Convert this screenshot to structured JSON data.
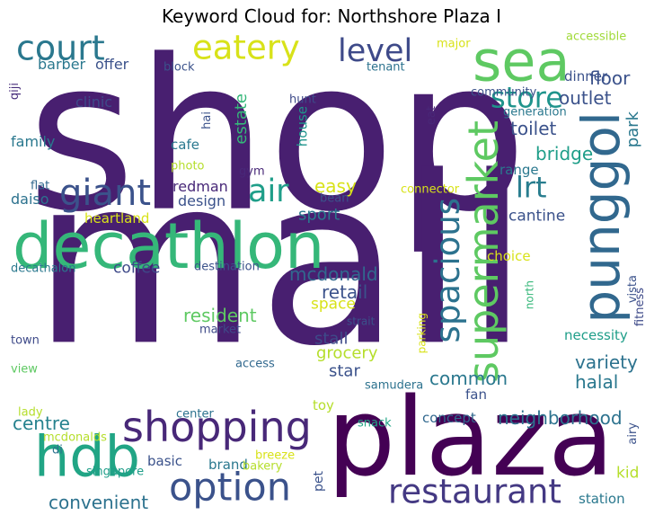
{
  "chart_data": {
    "type": "word_cloud",
    "title": "Keyword Cloud for: Northshore Plaza I",
    "colormap": "viridis",
    "background": "#ffffff",
    "words": [
      {
        "text": "shop",
        "weight": 1.0,
        "color": "#481f70",
        "vertical": false
      },
      {
        "text": "mall",
        "weight": 1.0,
        "color": "#481f70",
        "vertical": false
      },
      {
        "text": "plaza",
        "weight": 0.62,
        "color": "#440154",
        "vertical": false
      },
      {
        "text": "decathlon",
        "weight": 0.48,
        "color": "#35b779",
        "vertical": false
      },
      {
        "text": "sea",
        "weight": 0.42,
        "color": "#5ec962",
        "vertical": false
      },
      {
        "text": "punggol",
        "weight": 0.4,
        "color": "#31688e",
        "vertical": true
      },
      {
        "text": "hdb",
        "weight": 0.4,
        "color": "#21a585",
        "vertical": false
      },
      {
        "text": "shopping",
        "weight": 0.31,
        "color": "#482878",
        "vertical": false
      },
      {
        "text": "supermarket",
        "weight": 0.3,
        "color": "#5ec962",
        "vertical": true
      },
      {
        "text": "option",
        "weight": 0.28,
        "color": "#3b528b",
        "vertical": false
      },
      {
        "text": "restaurant",
        "weight": 0.24,
        "color": "#443983",
        "vertical": false
      },
      {
        "text": "spacious",
        "weight": 0.24,
        "color": "#2c728e",
        "vertical": true
      },
      {
        "text": "giant",
        "weight": 0.22,
        "color": "#3b528b",
        "vertical": false
      },
      {
        "text": "court",
        "weight": 0.21,
        "color": "#2a788e",
        "vertical": false
      },
      {
        "text": "eatery",
        "weight": 0.21,
        "color": "#d8e219",
        "vertical": false
      },
      {
        "text": "air",
        "weight": 0.2,
        "color": "#1f9e89",
        "vertical": false
      },
      {
        "text": "level",
        "weight": 0.19,
        "color": "#3e4a89",
        "vertical": false
      },
      {
        "text": "store",
        "weight": 0.18,
        "color": "#1f948c",
        "vertical": false
      },
      {
        "text": "lrt",
        "weight": 0.18,
        "color": "#287d8e",
        "vertical": false
      },
      {
        "text": "neighborhood",
        "weight": 0.13,
        "color": "#2c728e",
        "vertical": false
      },
      {
        "text": "convenient",
        "weight": 0.13,
        "color": "#2c728e",
        "vertical": false
      },
      {
        "text": "centre",
        "weight": 0.12,
        "color": "#26828e",
        "vertical": false
      },
      {
        "text": "common",
        "weight": 0.12,
        "color": "#2a788e",
        "vertical": false
      },
      {
        "text": "retail",
        "weight": 0.12,
        "color": "#3b528b",
        "vertical": false
      },
      {
        "text": "mcdonald",
        "weight": 0.12,
        "color": "#31688e",
        "vertical": false
      },
      {
        "text": "resident",
        "weight": 0.12,
        "color": "#5ec962",
        "vertical": false
      },
      {
        "text": "variety",
        "weight": 0.12,
        "color": "#2c728e",
        "vertical": false
      },
      {
        "text": "halal",
        "weight": 0.12,
        "color": "#2a788e",
        "vertical": false
      },
      {
        "text": "toilet",
        "weight": 0.11,
        "color": "#3b528b",
        "vertical": false
      },
      {
        "text": "outlet",
        "weight": 0.11,
        "color": "#3b528b",
        "vertical": false
      },
      {
        "text": "bridge",
        "weight": 0.11,
        "color": "#1f9e89",
        "vertical": false
      },
      {
        "text": "floor",
        "weight": 0.11,
        "color": "#3b528b",
        "vertical": false
      },
      {
        "text": "easy",
        "weight": 0.11,
        "color": "#d8e219",
        "vertical": false
      },
      {
        "text": "estate",
        "weight": 0.1,
        "color": "#35b779",
        "vertical": true
      },
      {
        "text": "grocery",
        "weight": 0.1,
        "color": "#b5de2b",
        "vertical": false
      },
      {
        "text": "stall",
        "weight": 0.1,
        "color": "#3e4a89",
        "vertical": false
      },
      {
        "text": "star",
        "weight": 0.1,
        "color": "#3b528b",
        "vertical": false
      },
      {
        "text": "sport",
        "weight": 0.1,
        "color": "#2a788e",
        "vertical": false
      },
      {
        "text": "park",
        "weight": 0.1,
        "color": "#2a788e",
        "vertical": true
      },
      {
        "text": "coffee",
        "weight": 0.1,
        "color": "#3e4a89",
        "vertical": false
      },
      {
        "text": "cantine",
        "weight": 0.1,
        "color": "#3b528b",
        "vertical": false
      },
      {
        "text": "space",
        "weight": 0.1,
        "color": "#d8e219",
        "vertical": false
      },
      {
        "text": "kid",
        "weight": 0.09,
        "color": "#b5de2b",
        "vertical": false
      },
      {
        "text": "design",
        "weight": 0.09,
        "color": "#3b528b",
        "vertical": false
      },
      {
        "text": "redman",
        "weight": 0.08,
        "color": "#482878",
        "vertical": false
      },
      {
        "text": "clinic",
        "weight": 0.08,
        "color": "#3e4a89",
        "vertical": false
      },
      {
        "text": "family",
        "weight": 0.08,
        "color": "#2a788e",
        "vertical": false
      },
      {
        "text": "offer",
        "weight": 0.08,
        "color": "#3b528b",
        "vertical": false
      },
      {
        "text": "barber",
        "weight": 0.08,
        "color": "#2a788e",
        "vertical": false
      },
      {
        "text": "daiso",
        "weight": 0.08,
        "color": "#2c728e",
        "vertical": false
      },
      {
        "text": "heartland",
        "weight": 0.08,
        "color": "#d8e219",
        "vertical": false
      },
      {
        "text": "cafe",
        "weight": 0.08,
        "color": "#2a788e",
        "vertical": false
      },
      {
        "text": "house",
        "weight": 0.08,
        "color": "#1f948c",
        "vertical": true
      },
      {
        "text": "dinner",
        "weight": 0.08,
        "color": "#3b528b",
        "vertical": false
      },
      {
        "text": "range",
        "weight": 0.08,
        "color": "#2a788e",
        "vertical": false
      },
      {
        "text": "choice",
        "weight": 0.08,
        "color": "#d8e219",
        "vertical": false
      },
      {
        "text": "necessity",
        "weight": 0.08,
        "color": "#1f9e89",
        "vertical": false
      },
      {
        "text": "toy",
        "weight": 0.08,
        "color": "#b5de2b",
        "vertical": false
      },
      {
        "text": "fan",
        "weight": 0.08,
        "color": "#3b528b",
        "vertical": false
      },
      {
        "text": "concept",
        "weight": 0.08,
        "color": "#31688e",
        "vertical": false
      },
      {
        "text": "brand",
        "weight": 0.08,
        "color": "#2a788e",
        "vertical": false
      },
      {
        "text": "basic",
        "weight": 0.08,
        "color": "#3b528b",
        "vertical": false
      },
      {
        "text": "pet",
        "weight": 0.07,
        "color": "#3b528b",
        "vertical": true
      },
      {
        "text": "station",
        "weight": 0.07,
        "color": "#2a788e",
        "vertical": false
      },
      {
        "text": "accessible",
        "weight": 0.06,
        "color": "#a0da39",
        "vertical": false
      },
      {
        "text": "major",
        "weight": 0.06,
        "color": "#d8e219",
        "vertical": false
      },
      {
        "text": "block",
        "weight": 0.06,
        "color": "#3b528b",
        "vertical": false
      },
      {
        "text": "tenant",
        "weight": 0.06,
        "color": "#2c728e",
        "vertical": false
      },
      {
        "text": "hunt",
        "weight": 0.06,
        "color": "#3e4a89",
        "vertical": false
      },
      {
        "text": "eat",
        "weight": 0.06,
        "color": "#482878",
        "vertical": true
      },
      {
        "text": "community",
        "weight": 0.06,
        "color": "#3b528b",
        "vertical": false
      },
      {
        "text": "generation",
        "weight": 0.06,
        "color": "#2a788e",
        "vertical": false
      },
      {
        "text": "hai",
        "weight": 0.06,
        "color": "#3b528b",
        "vertical": true
      },
      {
        "text": "photo",
        "weight": 0.06,
        "color": "#b5de2b",
        "vertical": false
      },
      {
        "text": "gym",
        "weight": 0.06,
        "color": "#482878",
        "vertical": false
      },
      {
        "text": "flat",
        "weight": 0.06,
        "color": "#31688e",
        "vertical": false
      },
      {
        "text": "bean",
        "weight": 0.06,
        "color": "#3b528b",
        "vertical": false
      },
      {
        "text": "connector",
        "weight": 0.06,
        "color": "#d8e219",
        "vertical": false
      },
      {
        "text": "qiji",
        "weight": 0.06,
        "color": "#472d7b",
        "vertical": true
      },
      {
        "text": "decathalon",
        "weight": 0.06,
        "color": "#2a788e",
        "vertical": false
      },
      {
        "text": "destination",
        "weight": 0.06,
        "color": "#3b528b",
        "vertical": false
      },
      {
        "text": "vista",
        "weight": 0.06,
        "color": "#3b528b",
        "vertical": true
      },
      {
        "text": "north",
        "weight": 0.06,
        "color": "#35b779",
        "vertical": true
      },
      {
        "text": "fitness",
        "weight": 0.06,
        "color": "#3e4a89",
        "vertical": true
      },
      {
        "text": "parking",
        "weight": 0.06,
        "color": "#d8e219",
        "vertical": true
      },
      {
        "text": "strait",
        "weight": 0.06,
        "color": "#3b528b",
        "vertical": false
      },
      {
        "text": "market",
        "weight": 0.06,
        "color": "#3e4a89",
        "vertical": false
      },
      {
        "text": "town",
        "weight": 0.06,
        "color": "#3e4a89",
        "vertical": false
      },
      {
        "text": "view",
        "weight": 0.06,
        "color": "#5ec962",
        "vertical": false
      },
      {
        "text": "access",
        "weight": 0.06,
        "color": "#31688e",
        "vertical": false
      },
      {
        "text": "samudera",
        "weight": 0.06,
        "color": "#2c728e",
        "vertical": false
      },
      {
        "text": "lady",
        "weight": 0.06,
        "color": "#b5de2b",
        "vertical": false
      },
      {
        "text": "center",
        "weight": 0.06,
        "color": "#2c728e",
        "vertical": false
      },
      {
        "text": "snack",
        "weight": 0.06,
        "color": "#21a585",
        "vertical": false
      },
      {
        "text": "airy",
        "weight": 0.06,
        "color": "#3b528b",
        "vertical": true
      },
      {
        "text": "mcdonalds",
        "weight": 0.06,
        "color": "#b5de2b",
        "vertical": false
      },
      {
        "text": "di",
        "weight": 0.06,
        "color": "#2c728e",
        "vertical": false
      },
      {
        "text": "breeze",
        "weight": 0.06,
        "color": "#d8e219",
        "vertical": false
      },
      {
        "text": "singapore",
        "weight": 0.06,
        "color": "#1f9e89",
        "vertical": false
      },
      {
        "text": "bakery",
        "weight": 0.06,
        "color": "#b5de2b",
        "vertical": false
      }
    ]
  }
}
